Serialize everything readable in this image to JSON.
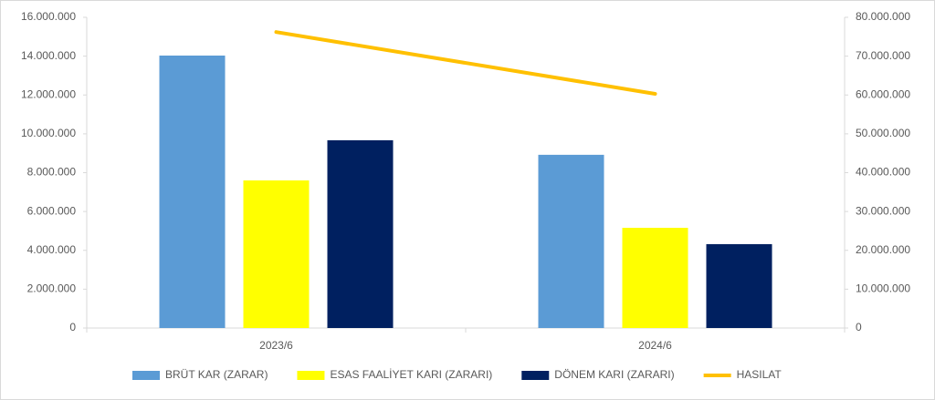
{
  "chart_data": {
    "type": "bar",
    "categories": [
      "2023/6",
      "2024/6"
    ],
    "series": [
      {
        "name": "BRÜT KAR (ZARAR)",
        "color": "#5b9bd5",
        "values": [
          14030000,
          8920000
        ]
      },
      {
        "name": "ESAS FAALİYET KARI (ZARARI)",
        "color": "#ffff00",
        "values": [
          7600000,
          5160000
        ]
      },
      {
        "name": "DÖNEM KARI (ZARARI)",
        "color": "#002060",
        "values": [
          9670000,
          4320000
        ]
      },
      {
        "name": "HASILAT",
        "color": "#ffc000",
        "type": "line",
        "axis": "y2",
        "values": [
          76200000,
          60300000
        ]
      }
    ],
    "ylim": [
      0,
      16000000
    ],
    "yticks": [
      0,
      {
        "value": 2000000,
        "label": "2.000.000"
      },
      {
        "value": 4000000,
        "label": "4.000.000"
      },
      {
        "value": 6000000,
        "label": "6.000.000"
      },
      {
        "value": 8000000,
        "label": "8.000.000"
      },
      {
        "value": 10000000,
        "label": "10.000.000"
      },
      {
        "value": 12000000,
        "label": "12.000.000"
      },
      {
        "value": 14000000,
        "label": "14.000.000"
      },
      {
        "value": 16000000,
        "label": "16.000.000"
      }
    ],
    "y2lim": [
      0,
      80000000
    ],
    "y2ticks": [
      0,
      {
        "value": 10000000,
        "label": "10.000.000"
      },
      {
        "value": 20000000,
        "label": "20.000.000"
      },
      {
        "value": 30000000,
        "label": "30.000.000"
      },
      {
        "value": 40000000,
        "label": "40.000.000"
      },
      {
        "value": 50000000,
        "label": "50.000.000"
      },
      {
        "value": 60000000,
        "label": "60.000.000"
      },
      {
        "value": 70000000,
        "label": "70.000.000"
      },
      {
        "value": 80000000,
        "label": "80.000.000"
      }
    ],
    "grid": false,
    "legend": "bottom"
  }
}
